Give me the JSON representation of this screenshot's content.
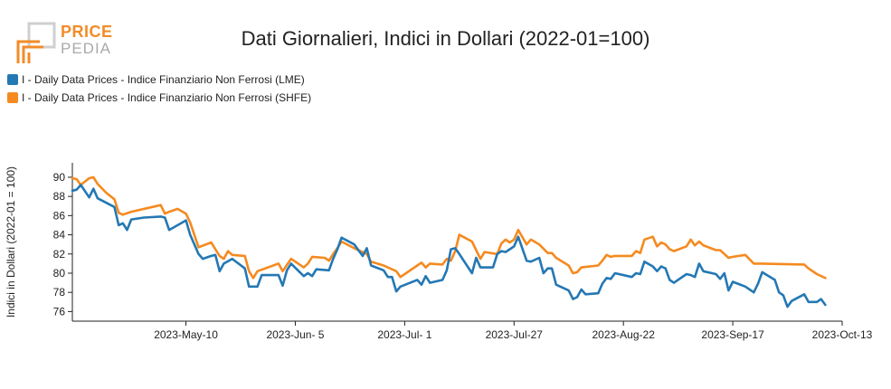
{
  "logo": {
    "line1": "PRICE",
    "line2": "PEDIA"
  },
  "chart_data": {
    "type": "line",
    "title": "Dati Giornalieri, Indici in Dollari (2022-01=100)",
    "ylabel": "Indici in Dollari (2022-01 = 100)",
    "xlabel": "",
    "ylim": [
      75,
      91.5
    ],
    "yticks": [
      76,
      78,
      80,
      82,
      84,
      86,
      88,
      90
    ],
    "xlim": [
      "2023-04-13",
      "2023-10-13"
    ],
    "xticks": [
      "2023-May-10",
      "2023-Jun- 5",
      "2023-Jul- 1",
      "2023-Jul-27",
      "2023-Aug-22",
      "2023-Sep-17",
      "2023-Oct-13"
    ],
    "legend_position": "top-left",
    "grid": false,
    "series": [
      {
        "name": "I - Daily Data Prices - Indice Finanziario Non Ferrosi (LME)",
        "color": "#2478b4",
        "points": [
          [
            "2023-04-13",
            88.6
          ],
          [
            "2023-04-14",
            88.7
          ],
          [
            "2023-04-15",
            89.2
          ],
          [
            "2023-04-17",
            87.9
          ],
          [
            "2023-04-18",
            88.8
          ],
          [
            "2023-04-19",
            87.8
          ],
          [
            "2023-04-23",
            86.9
          ],
          [
            "2023-04-24",
            85.0
          ],
          [
            "2023-04-25",
            85.2
          ],
          [
            "2023-04-26",
            84.5
          ],
          [
            "2023-04-27",
            85.6
          ],
          [
            "2023-04-30",
            85.8
          ],
          [
            "2023-05-04",
            85.9
          ],
          [
            "2023-05-05",
            85.8
          ],
          [
            "2023-05-06",
            84.5
          ],
          [
            "2023-05-10",
            85.5
          ],
          [
            "2023-05-11",
            84.0
          ],
          [
            "2023-05-13",
            82.0
          ],
          [
            "2023-05-14",
            81.5
          ],
          [
            "2023-05-16",
            81.8
          ],
          [
            "2023-05-17",
            81.9
          ],
          [
            "2023-05-18",
            80.2
          ],
          [
            "2023-05-19",
            81.0
          ],
          [
            "2023-05-21",
            81.5
          ],
          [
            "2023-05-24",
            80.5
          ],
          [
            "2023-05-25",
            78.6
          ],
          [
            "2023-05-27",
            78.6
          ],
          [
            "2023-05-28",
            79.8
          ],
          [
            "2023-06-01",
            79.8
          ],
          [
            "2023-06-02",
            78.7
          ],
          [
            "2023-06-03",
            80.3
          ],
          [
            "2023-06-04",
            81.0
          ],
          [
            "2023-06-07",
            79.7
          ],
          [
            "2023-06-08",
            80.0
          ],
          [
            "2023-06-09",
            79.7
          ],
          [
            "2023-06-10",
            80.4
          ],
          [
            "2023-06-13",
            80.3
          ],
          [
            "2023-06-14",
            81.5
          ],
          [
            "2023-06-15",
            82.5
          ],
          [
            "2023-06-16",
            83.7
          ],
          [
            "2023-06-19",
            83.0
          ],
          [
            "2023-06-21",
            81.8
          ],
          [
            "2023-06-22",
            82.6
          ],
          [
            "2023-06-23",
            80.8
          ],
          [
            "2023-06-26",
            80.3
          ],
          [
            "2023-06-27",
            79.6
          ],
          [
            "2023-06-28",
            79.6
          ],
          [
            "2023-06-29",
            78.1
          ],
          [
            "2023-06-30",
            78.6
          ],
          [
            "2023-07-04",
            79.3
          ],
          [
            "2023-07-05",
            78.8
          ],
          [
            "2023-07-06",
            79.7
          ],
          [
            "2023-07-07",
            79.0
          ],
          [
            "2023-07-10",
            79.3
          ],
          [
            "2023-07-11",
            80.3
          ],
          [
            "2023-07-12",
            82.5
          ],
          [
            "2023-07-13",
            82.6
          ],
          [
            "2023-07-14",
            82.0
          ],
          [
            "2023-07-17",
            80.0
          ],
          [
            "2023-07-18",
            81.6
          ],
          [
            "2023-07-19",
            80.6
          ],
          [
            "2023-07-22",
            80.6
          ],
          [
            "2023-07-23",
            82.0
          ],
          [
            "2023-07-24",
            82.3
          ],
          [
            "2023-07-25",
            82.2
          ],
          [
            "2023-07-26",
            82.5
          ],
          [
            "2023-07-27",
            82.8
          ],
          [
            "2023-07-28",
            83.8
          ],
          [
            "2023-07-30",
            81.3
          ],
          [
            "2023-07-31",
            81.2
          ],
          [
            "2023-08-02",
            81.6
          ],
          [
            "2023-08-03",
            80.0
          ],
          [
            "2023-08-04",
            80.5
          ],
          [
            "2023-08-05",
            80.5
          ],
          [
            "2023-08-06",
            78.8
          ],
          [
            "2023-08-09",
            78.2
          ],
          [
            "2023-08-10",
            77.3
          ],
          [
            "2023-08-11",
            77.5
          ],
          [
            "2023-08-12",
            78.3
          ],
          [
            "2023-08-13",
            77.8
          ],
          [
            "2023-08-16",
            77.9
          ],
          [
            "2023-08-17",
            78.9
          ],
          [
            "2023-08-18",
            79.5
          ],
          [
            "2023-08-19",
            79.4
          ],
          [
            "2023-08-20",
            80.0
          ],
          [
            "2023-08-24",
            79.6
          ],
          [
            "2023-08-25",
            80.0
          ],
          [
            "2023-08-26",
            79.9
          ],
          [
            "2023-08-27",
            81.2
          ],
          [
            "2023-08-29",
            80.7
          ],
          [
            "2023-08-30",
            80.2
          ],
          [
            "2023-08-31",
            80.7
          ],
          [
            "2023-09-01",
            80.5
          ],
          [
            "2023-09-02",
            79.3
          ],
          [
            "2023-09-03",
            79.0
          ],
          [
            "2023-09-06",
            79.9
          ],
          [
            "2023-09-07",
            79.8
          ],
          [
            "2023-09-08",
            79.6
          ],
          [
            "2023-09-09",
            81.0
          ],
          [
            "2023-09-10",
            80.2
          ],
          [
            "2023-09-13",
            79.9
          ],
          [
            "2023-09-14",
            79.4
          ],
          [
            "2023-09-15",
            80.0
          ],
          [
            "2023-09-16",
            78.2
          ],
          [
            "2023-09-17",
            79.1
          ],
          [
            "2023-09-20",
            78.6
          ],
          [
            "2023-09-22",
            78.0
          ],
          [
            "2023-09-23",
            78.9
          ],
          [
            "2023-09-24",
            80.1
          ],
          [
            "2023-09-27",
            79.3
          ],
          [
            "2023-09-28",
            78.0
          ],
          [
            "2023-09-29",
            77.7
          ],
          [
            "2023-09-30",
            76.5
          ],
          [
            "2023-10-01",
            77.1
          ],
          [
            "2023-10-04",
            77.8
          ],
          [
            "2023-10-05",
            77.0
          ],
          [
            "2023-10-07",
            77.0
          ],
          [
            "2023-10-08",
            77.3
          ],
          [
            "2023-10-09",
            76.7
          ]
        ]
      },
      {
        "name": "I - Daily Data Prices - Indice Finanziario Non Ferrosi (SHFE)",
        "color": "#f58a1f",
        "points": [
          [
            "2023-04-13",
            89.9
          ],
          [
            "2023-04-14",
            89.8
          ],
          [
            "2023-04-15",
            89.2
          ],
          [
            "2023-04-17",
            89.9
          ],
          [
            "2023-04-18",
            90.0
          ],
          [
            "2023-04-19",
            89.3
          ],
          [
            "2023-04-21",
            88.4
          ],
          [
            "2023-04-23",
            87.7
          ],
          [
            "2023-04-24",
            86.3
          ],
          [
            "2023-04-25",
            86.1
          ],
          [
            "2023-04-27",
            86.4
          ],
          [
            "2023-05-04",
            87.1
          ],
          [
            "2023-05-05",
            86.2
          ],
          [
            "2023-05-06",
            86.4
          ],
          [
            "2023-05-08",
            86.7
          ],
          [
            "2023-05-10",
            86.2
          ],
          [
            "2023-05-11",
            85.3
          ],
          [
            "2023-05-13",
            82.7
          ],
          [
            "2023-05-16",
            83.2
          ],
          [
            "2023-05-17",
            82.5
          ],
          [
            "2023-05-18",
            81.8
          ],
          [
            "2023-05-19",
            81.5
          ],
          [
            "2023-05-20",
            82.3
          ],
          [
            "2023-05-21",
            81.9
          ],
          [
            "2023-05-24",
            81.8
          ],
          [
            "2023-05-25",
            80.2
          ],
          [
            "2023-05-26",
            79.5
          ],
          [
            "2023-05-27",
            80.2
          ],
          [
            "2023-06-01",
            81.0
          ],
          [
            "2023-06-02",
            80.2
          ],
          [
            "2023-06-04",
            81.5
          ],
          [
            "2023-06-07",
            80.6
          ],
          [
            "2023-06-08",
            81.0
          ],
          [
            "2023-06-09",
            81.7
          ],
          [
            "2023-06-12",
            81.6
          ],
          [
            "2023-06-13",
            81.3
          ],
          [
            "2023-06-14",
            82.0
          ],
          [
            "2023-06-15",
            82.6
          ],
          [
            "2023-06-16",
            83.3
          ],
          [
            "2023-06-19",
            82.6
          ],
          [
            "2023-06-22",
            82.0
          ],
          [
            "2023-06-23",
            81.2
          ],
          [
            "2023-06-26",
            80.8
          ],
          [
            "2023-06-29",
            80.2
          ],
          [
            "2023-06-30",
            79.6
          ],
          [
            "2023-07-04",
            80.8
          ],
          [
            "2023-07-05",
            81.1
          ],
          [
            "2023-07-06",
            80.6
          ],
          [
            "2023-07-07",
            81.0
          ],
          [
            "2023-07-10",
            80.9
          ],
          [
            "2023-07-11",
            81.5
          ],
          [
            "2023-07-12",
            81.3
          ],
          [
            "2023-07-13",
            82.3
          ],
          [
            "2023-07-14",
            84.0
          ],
          [
            "2023-07-17",
            83.3
          ],
          [
            "2023-07-18",
            82.4
          ],
          [
            "2023-07-19",
            81.5
          ],
          [
            "2023-07-20",
            82.2
          ],
          [
            "2023-07-23",
            82.0
          ],
          [
            "2023-07-24",
            83.1
          ],
          [
            "2023-07-25",
            83.5
          ],
          [
            "2023-07-26",
            83.2
          ],
          [
            "2023-07-27",
            83.5
          ],
          [
            "2023-07-28",
            84.5
          ],
          [
            "2023-07-30",
            83.0
          ],
          [
            "2023-07-31",
            83.5
          ],
          [
            "2023-08-02",
            83.0
          ],
          [
            "2023-08-04",
            82.1
          ],
          [
            "2023-08-05",
            82.1
          ],
          [
            "2023-08-06",
            81.6
          ],
          [
            "2023-08-09",
            80.8
          ],
          [
            "2023-08-10",
            80.0
          ],
          [
            "2023-08-11",
            80.1
          ],
          [
            "2023-08-12",
            80.6
          ],
          [
            "2023-08-16",
            80.8
          ],
          [
            "2023-08-17",
            81.3
          ],
          [
            "2023-08-18",
            81.9
          ],
          [
            "2023-08-19",
            81.7
          ],
          [
            "2023-08-20",
            81.8
          ],
          [
            "2023-08-24",
            81.8
          ],
          [
            "2023-08-25",
            82.3
          ],
          [
            "2023-08-26",
            82.1
          ],
          [
            "2023-08-27",
            83.5
          ],
          [
            "2023-08-29",
            83.8
          ],
          [
            "2023-08-30",
            82.8
          ],
          [
            "2023-08-31",
            83.2
          ],
          [
            "2023-09-01",
            83.0
          ],
          [
            "2023-09-02",
            82.5
          ],
          [
            "2023-09-03",
            82.3
          ],
          [
            "2023-09-06",
            82.8
          ],
          [
            "2023-09-07",
            83.5
          ],
          [
            "2023-09-08",
            82.9
          ],
          [
            "2023-09-09",
            83.3
          ],
          [
            "2023-09-10",
            82.9
          ],
          [
            "2023-09-13",
            82.4
          ],
          [
            "2023-09-14",
            82.4
          ],
          [
            "2023-09-15",
            82.0
          ],
          [
            "2023-09-16",
            81.6
          ],
          [
            "2023-09-17",
            81.7
          ],
          [
            "2023-09-20",
            81.9
          ],
          [
            "2023-09-22",
            81.0
          ],
          [
            "2023-09-24",
            81.0
          ],
          [
            "2023-10-04",
            80.9
          ],
          [
            "2023-10-05",
            80.5
          ],
          [
            "2023-10-07",
            79.9
          ],
          [
            "2023-10-09",
            79.5
          ]
        ]
      }
    ]
  }
}
